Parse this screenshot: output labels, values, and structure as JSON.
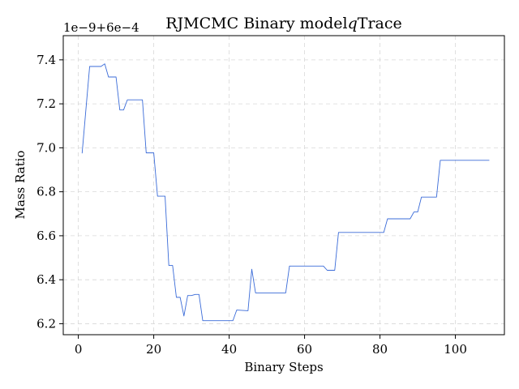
{
  "chart_data": {
    "type": "line",
    "title": "RJMCMC Binary model",
    "title_math": "q",
    "title_suffix": "Trace",
    "xlabel": "Binary Steps",
    "ylabel": "Mass Ratio",
    "y_offset_label": "1e−9+6e−4",
    "xlim": [
      -4,
      113
    ],
    "ylim": [
      6.15,
      7.51
    ],
    "x_ticks": [
      0,
      20,
      40,
      60,
      80,
      100
    ],
    "x_tick_labels": [
      "0",
      "20",
      "40",
      "60",
      "80",
      "100"
    ],
    "y_ticks": [
      6.2,
      6.4,
      6.6,
      6.8,
      7.0,
      7.2,
      7.4
    ],
    "y_tick_labels": [
      "6.2",
      "6.4",
      "6.6",
      "6.8",
      "7.0",
      "7.2",
      "7.4"
    ],
    "grid": true,
    "line_color": "#3a6bd8",
    "series": [
      {
        "values": [
          [
            1,
            6.975
          ],
          [
            3,
            7.37
          ],
          [
            6,
            7.37
          ],
          [
            7,
            7.382
          ],
          [
            8,
            7.322
          ],
          [
            10,
            7.322
          ],
          [
            11,
            7.172
          ],
          [
            12,
            7.172
          ],
          [
            13,
            7.218
          ],
          [
            17,
            7.218
          ],
          [
            18,
            6.977
          ],
          [
            20,
            6.977
          ],
          [
            21,
            6.78
          ],
          [
            23,
            6.78
          ],
          [
            24,
            6.465
          ],
          [
            25,
            6.465
          ],
          [
            26,
            6.32
          ],
          [
            27,
            6.32
          ],
          [
            28,
            6.235
          ],
          [
            29,
            6.328
          ],
          [
            30,
            6.328
          ],
          [
            31,
            6.333
          ],
          [
            32,
            6.333
          ],
          [
            33,
            6.214
          ],
          [
            41,
            6.214
          ],
          [
            42,
            6.262
          ],
          [
            45,
            6.259
          ],
          [
            46,
            6.448
          ],
          [
            47,
            6.34
          ],
          [
            55,
            6.34
          ],
          [
            56,
            6.462
          ],
          [
            65,
            6.462
          ],
          [
            66,
            6.443
          ],
          [
            68,
            6.443
          ],
          [
            69,
            6.615
          ],
          [
            81,
            6.615
          ],
          [
            82,
            6.677
          ],
          [
            88,
            6.677
          ],
          [
            89,
            6.708
          ],
          [
            90,
            6.708
          ],
          [
            91,
            6.776
          ],
          [
            95,
            6.776
          ],
          [
            96,
            6.943
          ],
          [
            109,
            6.943
          ]
        ]
      }
    ]
  }
}
